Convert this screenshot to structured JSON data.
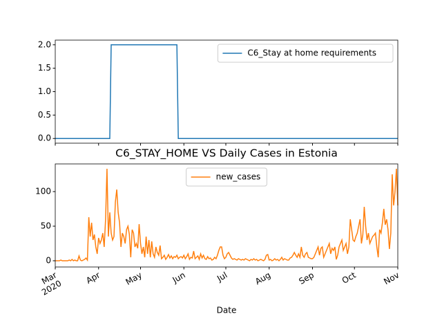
{
  "chart_data": [
    {
      "type": "line",
      "x": [
        "2020-03-01",
        "2020-04-09",
        "2020-04-10",
        "2020-05-27",
        "2020-05-28",
        "2020-11-01"
      ],
      "series": [
        {
          "name": "C6_Stay at home requirements",
          "color": "#1f77b4",
          "values": [
            0,
            0,
            2,
            2,
            0,
            0
          ]
        }
      ],
      "xlim": [
        "2020-03-01",
        "2020-11-01"
      ],
      "xticks": [
        "2020-03-01",
        "2020-04-01",
        "2020-05-01",
        "2020-06-01",
        "2020-07-01",
        "2020-08-01",
        "2020-09-01",
        "2020-10-01",
        "2020-11-01"
      ],
      "ylim": [
        -0.1,
        2.1
      ],
      "yticks": [
        {
          "value": 0,
          "label": "0.0"
        },
        {
          "value": 0.5,
          "label": "0.5"
        },
        {
          "value": 1,
          "label": "1.0"
        },
        {
          "value": 1.5,
          "label": "1.5"
        },
        {
          "value": 2,
          "label": "2.0"
        }
      ],
      "legend": "upper right"
    },
    {
      "type": "line",
      "title": "C6_STAY_HOME VS Daily Cases in Estonia",
      "x_label": "Date",
      "x": [
        "2020-03-01",
        "2020-03-02",
        "2020-03-03",
        "2020-03-04",
        "2020-03-05",
        "2020-03-06",
        "2020-03-07",
        "2020-03-08",
        "2020-03-09",
        "2020-03-10",
        "2020-03-11",
        "2020-03-12",
        "2020-03-13",
        "2020-03-14",
        "2020-03-15",
        "2020-03-16",
        "2020-03-17",
        "2020-03-18",
        "2020-03-19",
        "2020-03-20",
        "2020-03-21",
        "2020-03-22",
        "2020-03-23",
        "2020-03-24",
        "2020-03-25",
        "2020-03-26",
        "2020-03-27",
        "2020-03-28",
        "2020-03-29",
        "2020-03-30",
        "2020-03-31",
        "2020-04-01",
        "2020-04-02",
        "2020-04-03",
        "2020-04-04",
        "2020-04-05",
        "2020-04-06",
        "2020-04-07",
        "2020-04-08",
        "2020-04-09",
        "2020-04-10",
        "2020-04-11",
        "2020-04-12",
        "2020-04-13",
        "2020-04-14",
        "2020-04-15",
        "2020-04-16",
        "2020-04-17",
        "2020-04-18",
        "2020-04-19",
        "2020-04-20",
        "2020-04-21",
        "2020-04-22",
        "2020-04-23",
        "2020-04-24",
        "2020-04-25",
        "2020-04-26",
        "2020-04-27",
        "2020-04-28",
        "2020-04-29",
        "2020-04-30",
        "2020-05-01",
        "2020-05-02",
        "2020-05-03",
        "2020-05-04",
        "2020-05-05",
        "2020-05-06",
        "2020-05-07",
        "2020-05-08",
        "2020-05-09",
        "2020-05-10",
        "2020-05-11",
        "2020-05-12",
        "2020-05-13",
        "2020-05-14",
        "2020-05-15",
        "2020-05-16",
        "2020-05-17",
        "2020-05-18",
        "2020-05-19",
        "2020-05-20",
        "2020-05-21",
        "2020-05-22",
        "2020-05-23",
        "2020-05-24",
        "2020-05-25",
        "2020-05-26",
        "2020-05-27",
        "2020-05-28",
        "2020-05-29",
        "2020-05-30",
        "2020-05-31",
        "2020-06-01",
        "2020-06-02",
        "2020-06-03",
        "2020-06-04",
        "2020-06-05",
        "2020-06-06",
        "2020-06-07",
        "2020-06-08",
        "2020-06-09",
        "2020-06-10",
        "2020-06-11",
        "2020-06-12",
        "2020-06-13",
        "2020-06-14",
        "2020-06-15",
        "2020-06-16",
        "2020-06-17",
        "2020-06-18",
        "2020-06-19",
        "2020-06-20",
        "2020-06-21",
        "2020-06-22",
        "2020-06-23",
        "2020-06-24",
        "2020-06-25",
        "2020-06-26",
        "2020-06-27",
        "2020-06-28",
        "2020-06-29",
        "2020-06-30",
        "2020-07-01",
        "2020-07-02",
        "2020-07-03",
        "2020-07-04",
        "2020-07-05",
        "2020-07-06",
        "2020-07-07",
        "2020-07-08",
        "2020-07-09",
        "2020-07-10",
        "2020-07-11",
        "2020-07-12",
        "2020-07-13",
        "2020-07-14",
        "2020-07-15",
        "2020-07-16",
        "2020-07-17",
        "2020-07-18",
        "2020-07-19",
        "2020-07-20",
        "2020-07-21",
        "2020-07-22",
        "2020-07-23",
        "2020-07-24",
        "2020-07-25",
        "2020-07-26",
        "2020-07-27",
        "2020-07-28",
        "2020-07-29",
        "2020-07-30",
        "2020-07-31",
        "2020-08-01",
        "2020-08-02",
        "2020-08-03",
        "2020-08-04",
        "2020-08-05",
        "2020-08-06",
        "2020-08-07",
        "2020-08-08",
        "2020-08-09",
        "2020-08-10",
        "2020-08-11",
        "2020-08-12",
        "2020-08-13",
        "2020-08-14",
        "2020-08-15",
        "2020-08-16",
        "2020-08-17",
        "2020-08-18",
        "2020-08-19",
        "2020-08-20",
        "2020-08-21",
        "2020-08-22",
        "2020-08-23",
        "2020-08-24",
        "2020-08-25",
        "2020-08-26",
        "2020-08-27",
        "2020-08-28",
        "2020-08-29",
        "2020-08-30",
        "2020-08-31",
        "2020-09-01",
        "2020-09-02",
        "2020-09-03",
        "2020-09-04",
        "2020-09-05",
        "2020-09-06",
        "2020-09-07",
        "2020-09-08",
        "2020-09-09",
        "2020-09-10",
        "2020-09-11",
        "2020-09-12",
        "2020-09-13",
        "2020-09-14",
        "2020-09-15",
        "2020-09-16",
        "2020-09-17",
        "2020-09-18",
        "2020-09-19",
        "2020-09-20",
        "2020-09-21",
        "2020-09-22",
        "2020-09-23",
        "2020-09-24",
        "2020-09-25",
        "2020-09-26",
        "2020-09-27",
        "2020-09-28",
        "2020-09-29",
        "2020-09-30",
        "2020-10-01",
        "2020-10-02",
        "2020-10-03",
        "2020-10-04",
        "2020-10-05",
        "2020-10-06",
        "2020-10-07",
        "2020-10-08",
        "2020-10-09",
        "2020-10-10",
        "2020-10-11",
        "2020-10-12",
        "2020-10-13",
        "2020-10-14",
        "2020-10-15",
        "2020-10-16",
        "2020-10-17",
        "2020-10-18",
        "2020-10-19",
        "2020-10-20",
        "2020-10-21",
        "2020-10-22",
        "2020-10-23",
        "2020-10-24",
        "2020-10-25",
        "2020-10-26",
        "2020-10-27",
        "2020-10-28",
        "2020-10-29",
        "2020-10-30",
        "2020-10-31",
        "2020-11-01"
      ],
      "series": [
        {
          "name": "new_cases",
          "color": "#ff7f0e",
          "values": [
            0,
            0,
            0,
            0,
            1,
            0,
            0,
            0,
            0,
            0,
            1,
            0,
            2,
            0,
            1,
            0,
            0,
            7,
            1,
            0,
            1,
            2,
            4,
            1,
            63,
            35,
            55,
            30,
            38,
            20,
            10,
            33,
            25,
            30,
            40,
            20,
            60,
            133,
            35,
            70,
            40,
            30,
            35,
            85,
            103,
            70,
            55,
            20,
            40,
            35,
            25,
            45,
            50,
            38,
            5,
            45,
            40,
            20,
            25,
            18,
            53,
            25,
            10,
            20,
            5,
            35,
            10,
            30,
            5,
            28,
            10,
            5,
            20,
            12,
            8,
            22,
            3,
            5,
            8,
            2,
            5,
            9,
            4,
            7,
            3,
            6,
            5,
            8,
            3,
            5,
            6,
            4,
            8,
            3,
            6,
            10,
            2,
            5,
            4,
            14,
            3,
            5,
            7,
            2,
            10,
            4,
            8,
            3,
            2,
            6,
            3,
            4,
            1,
            2,
            5,
            3,
            8,
            15,
            20,
            20,
            8,
            3,
            5,
            10,
            12,
            8,
            4,
            2,
            3,
            2,
            1,
            3,
            2,
            1,
            2,
            1,
            3,
            2,
            1,
            0,
            2,
            1,
            3,
            1,
            2,
            0,
            1,
            2,
            1,
            0,
            2,
            8,
            9,
            1,
            2,
            0,
            1,
            3,
            1,
            2,
            0,
            2,
            5,
            1,
            3,
            2,
            1,
            1,
            4,
            5,
            8,
            12,
            8,
            5,
            10,
            5,
            20,
            8,
            5,
            10,
            12,
            5,
            4,
            3,
            3,
            5,
            10,
            15,
            20,
            8,
            18,
            20,
            5,
            10,
            15,
            20,
            25,
            10,
            18,
            15,
            20,
            2,
            8,
            20,
            25,
            30,
            15,
            20,
            25,
            10,
            20,
            60,
            45,
            30,
            28,
            35,
            40,
            50,
            60,
            25,
            38,
            78,
            50,
            30,
            40,
            25,
            30,
            35,
            37,
            40,
            20,
            5,
            45,
            40,
            55,
            75,
            52,
            60,
            45,
            17,
            40,
            125,
            80,
            100,
            133,
            80
          ]
        }
      ],
      "xlim": [
        "2020-03-01",
        "2020-11-01"
      ],
      "xticks": [
        {
          "value": "2020-03-01",
          "label": "Mar\n2020"
        },
        {
          "value": "2020-04-01",
          "label": "Apr"
        },
        {
          "value": "2020-05-01",
          "label": "May"
        },
        {
          "value": "2020-06-01",
          "label": "Jun"
        },
        {
          "value": "2020-07-01",
          "label": "Jul"
        },
        {
          "value": "2020-08-01",
          "label": "Aug"
        },
        {
          "value": "2020-09-01",
          "label": "Sep"
        },
        {
          "value": "2020-10-01",
          "label": "Oct"
        },
        {
          "value": "2020-11-01",
          "label": "Nov"
        }
      ],
      "ylim": [
        -9,
        140
      ],
      "yticks": [
        0,
        50,
        100
      ],
      "legend": "upper center"
    }
  ]
}
